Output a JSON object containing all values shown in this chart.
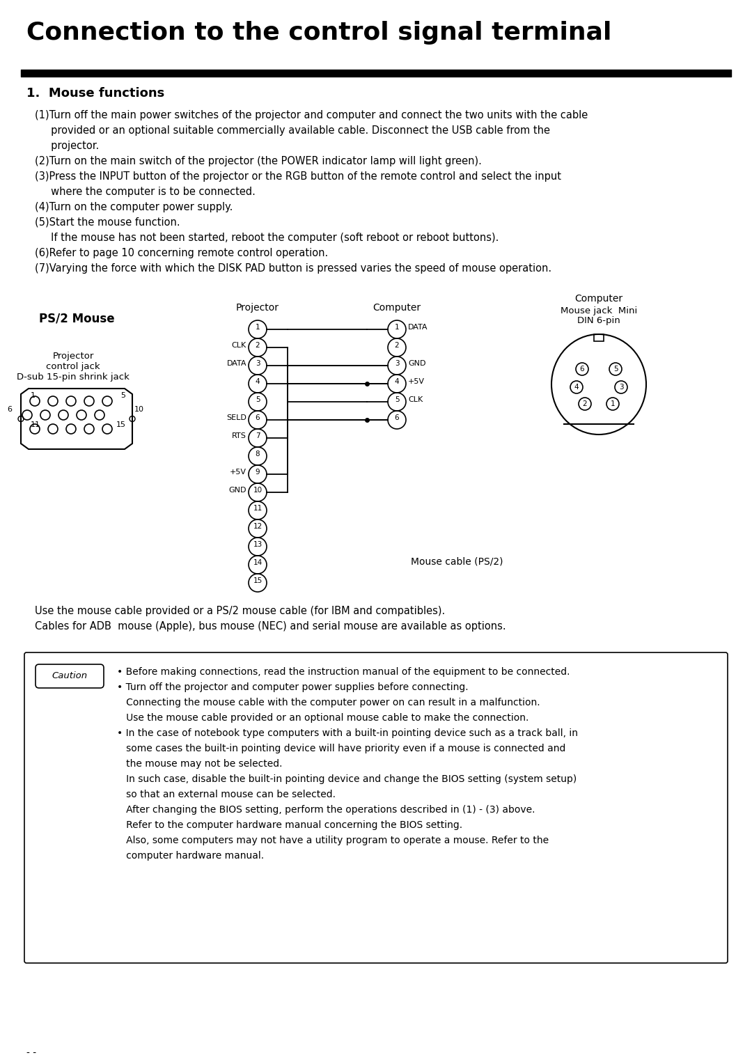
{
  "title": "Connection to the control signal terminal",
  "section": "1.  Mouse functions",
  "body_lines": [
    [
      "(1)",
      "Turn off the main power switches of the projector and computer and connect the two units with the cable"
    ],
    [
      "",
      "    provided or an optional suitable commercially available cable. Disconnect the USB cable from the"
    ],
    [
      "",
      "    projector."
    ],
    [
      "(2)",
      "Turn on the main switch of the projector (the POWER indicator lamp will light green)."
    ],
    [
      "(3)",
      "Press the INPUT button of the projector or the RGB button of the remote control and select the input"
    ],
    [
      "",
      "    where the computer is to be connected."
    ],
    [
      "(4)",
      "Turn on the computer power supply."
    ],
    [
      "(5)",
      "Start the mouse function."
    ],
    [
      "",
      "    If the mouse has not been started, reboot the computer (soft reboot or reboot buttons)."
    ],
    [
      "(6)",
      "Refer to page 10 concerning remote control operation."
    ],
    [
      "(7)",
      "Varying the force with which the DISK PAD button is pressed varies the speed of mouse operation."
    ]
  ],
  "ps2_label": "PS/2 Mouse",
  "proj_label1": "Projector",
  "proj_label2": "control jack",
  "proj_label3": "D-sub 15-pin shrink jack",
  "diag_projector": "Projector",
  "diag_computer": "Computer",
  "diag_comp_label": "Computer",
  "diag_mouse_jack": "Mouse jack  Mini",
  "diag_din": "DIN 6-pin",
  "mouse_cable_label": "Mouse cable (PS/2)",
  "footnote1": "Use the mouse cable provided or a PS/2 mouse cable (for IBM and compatibles).",
  "footnote2": "Cables for ADB  mouse (Apple), bus mouse (NEC) and serial mouse are available as options.",
  "caution_title": "Caution",
  "caution_lines": [
    "• Before making connections, read the instruction manual of the equipment to be connected.",
    "• Turn off the projector and computer power supplies before connecting.",
    "   Connecting the mouse cable with the computer power on can result in a malfunction.",
    "   Use the mouse cable provided or an optional mouse cable to make the connection.",
    "• In the case of notebook type computers with a built-in pointing device such as a track ball, in",
    "   some cases the built-in pointing device will have priority even if a mouse is connected and",
    "   the mouse may not be selected.",
    "   In such case, disable the built-in pointing device and change the BIOS setting (system setup)",
    "   so that an external mouse can be selected.",
    "   After changing the BIOS setting, perform the operations described in (1) - (3) above.",
    "   Refer to the computer hardware manual concerning the BIOS setting.",
    "   Also, some computers may not have a utility program to operate a mouse. Refer to the",
    "   computer hardware manual."
  ],
  "page_label": "- -",
  "bg_color": "#ffffff"
}
